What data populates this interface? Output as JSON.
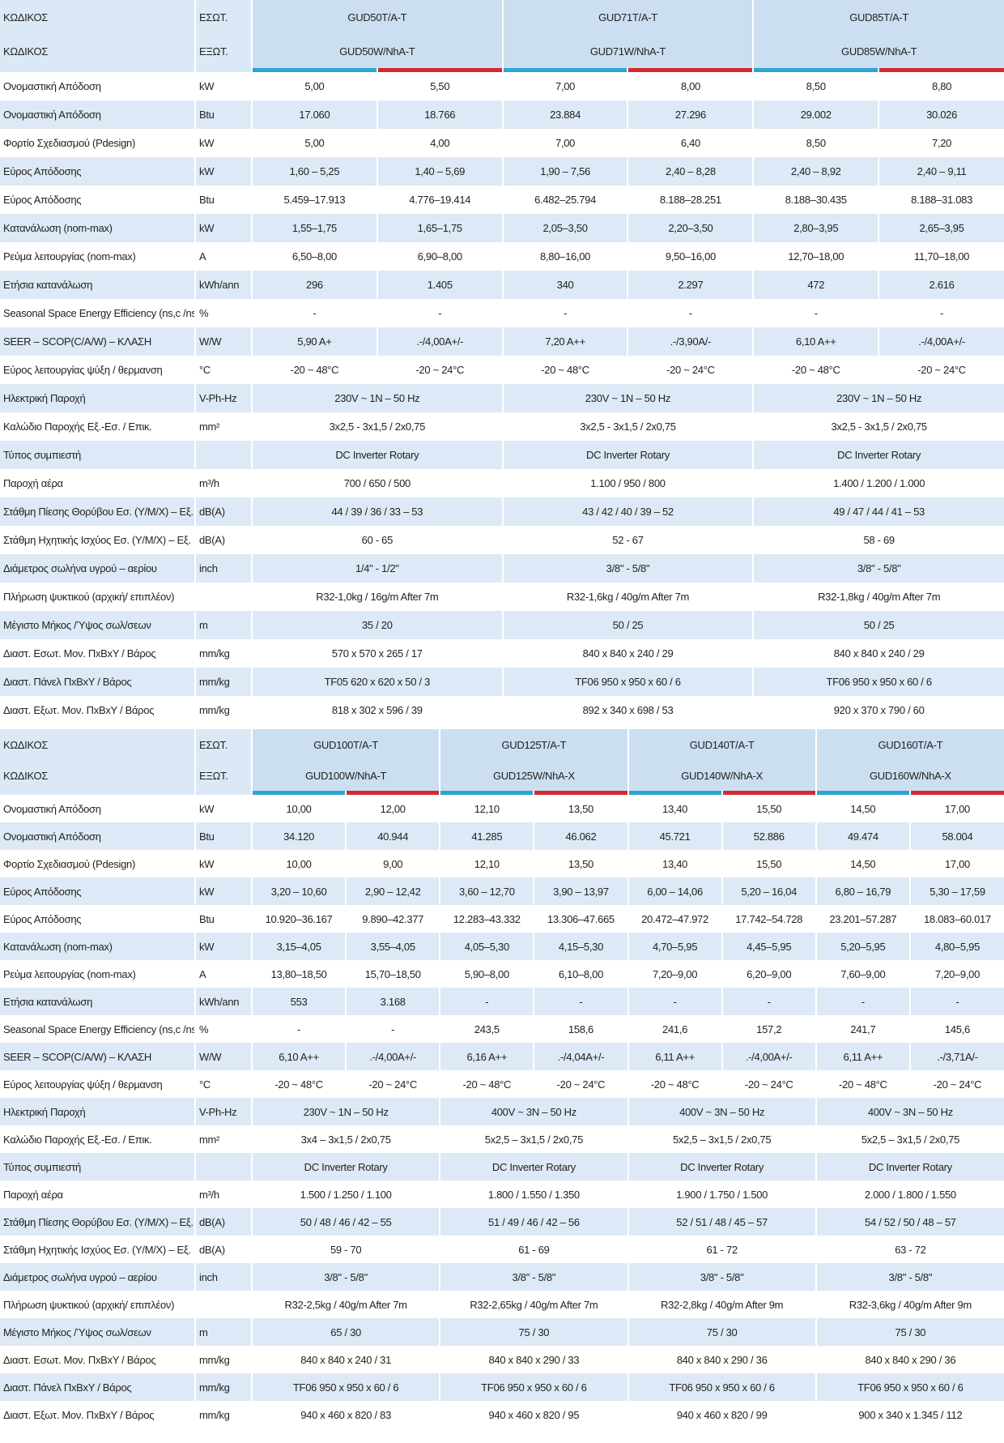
{
  "tables": [
    {
      "header": {
        "label": [
          "ΚΩΔΙΚΟΣ",
          "ΚΩΔΙΚΟΣ"
        ],
        "unit": [
          "ΕΣΩΤ.",
          "ΕΞΩΤ."
        ],
        "models": [
          {
            "indoor": "GUD50T/A-T",
            "outdoor": "GUD50W/NhA-T"
          },
          {
            "indoor": "GUD71T/A-T",
            "outdoor": "GUD71W/NhA-T"
          },
          {
            "indoor": "GUD85T/A-T",
            "outdoor": "GUD85W/NhA-T"
          }
        ]
      },
      "rows": [
        {
          "label": "Ονομαστική Απόδοση",
          "unit": "kW",
          "cells": [
            "5,00",
            "5,50",
            "7,00",
            "8,00",
            "8,50",
            "8,80"
          ]
        },
        {
          "label": "Ονομαστική Απόδοση",
          "unit": "Btu",
          "cells": [
            "17.060",
            "18.766",
            "23.884",
            "27.296",
            "29.002",
            "30.026"
          ]
        },
        {
          "label": "Φορτίο Σχεδιασμού (Pdesign)",
          "unit": "kW",
          "cells": [
            "5,00",
            "4,00",
            "7,00",
            "6,40",
            "8,50",
            "7,20"
          ]
        },
        {
          "label": "Εύρος Απόδοσης",
          "unit": "kW",
          "cells": [
            "1,60 – 5,25",
            "1,40 – 5,69",
            "1,90 – 7,56",
            "2,40 – 8,28",
            "2,40 – 8,92",
            "2,40 – 9,11"
          ]
        },
        {
          "label": "Εύρος Απόδοσης",
          "unit": "Btu",
          "cells": [
            "5.459–17.913",
            "4.776–19.414",
            "6.482–25.794",
            "8.188–28.251",
            "8.188–30.435",
            "8.188–31.083"
          ]
        },
        {
          "label": "Κατανάλωση (nom-max)",
          "unit": "kW",
          "cells": [
            "1,55–1,75",
            "1,65–1,75",
            "2,05–3,50",
            "2,20–3,50",
            "2,80–3,95",
            "2,65–3,95"
          ]
        },
        {
          "label": "Ρεύμα λειτουργίας (nom-max)",
          "unit": "A",
          "cells": [
            "6,50–8,00",
            "6,90–8,00",
            "8,80–16,00",
            "9,50–16,00",
            "12,70–18,00",
            "11,70–18,00"
          ]
        },
        {
          "label": "Ετήσια κατανάλωση",
          "unit": "kWh/ann",
          "cells": [
            "296",
            "1.405",
            "340",
            "2.297",
            "472",
            "2.616"
          ]
        },
        {
          "label": "Seasonal Space Energy Efficiency (ns,c /ns,h)",
          "unit": "%",
          "cells": [
            "-",
            "-",
            "-",
            "-",
            "-",
            "-"
          ]
        },
        {
          "label": "SEER – SCOP(C/A/W) – ΚΛΑΣΗ",
          "unit": "W/W",
          "cells": [
            "5,90 A+",
            ".-/4,00A+/-",
            "7,20 A++",
            ".-/3,90A/-",
            "6,10 A++",
            ".-/4,00A+/-"
          ]
        },
        {
          "label": "Εύρος λειτουργίας ψύξη / θερμανση",
          "unit": "°C",
          "cells": [
            "-20 ~ 48°C",
            "-20 ~ 24°C",
            "-20 ~ 48°C",
            "-20 ~ 24°C",
            "-20 ~ 48°C",
            "-20 ~ 24°C"
          ]
        },
        {
          "label": "Ηλεκτρική Παροχή",
          "unit": "V-Ph-Hz",
          "cells": [
            "230V ~ 1N – 50 Hz",
            "230V ~ 1N – 50 Hz",
            "230V ~ 1N – 50 Hz"
          ]
        },
        {
          "label": "Καλώδιο Παροχής Εξ.-Εσ. / Επικ.",
          "unit": "mm²",
          "cells": [
            "3x2,5 - 3x1,5 / 2x0,75",
            "3x2,5 - 3x1,5 / 2x0,75",
            "3x2,5 - 3x1,5 / 2x0,75"
          ]
        },
        {
          "label": "Τύπος συμπιεστή",
          "cells": [
            "DC Inverter Rotary",
            "DC Inverter Rotary",
            "DC Inverter Rotary"
          ]
        },
        {
          "label": "Παροχή αέρα",
          "unit": "m³/h",
          "cells": [
            "700 / 650 / 500",
            "1.100 / 950 / 800",
            "1.400 / 1.200 / 1.000"
          ]
        },
        {
          "label": "Στάθμη Πίεσης Θορύβου Εσ. (Υ/Μ/Χ) – Εξ.",
          "unit": "dB(A)",
          "cells": [
            "44 / 39 / 36 / 33 – 53",
            "43 / 42 / 40 / 39 – 52",
            "49 / 47 / 44 / 41 – 53"
          ]
        },
        {
          "label": "Στάθμη Ηχητικής Ισχύος Εσ. (Υ/Μ/Χ) – Εξ.",
          "unit": "dB(A)",
          "cells": [
            "60 - 65",
            "52 - 67",
            "58 - 69"
          ]
        },
        {
          "label": "Διάμετρος σωλήνα υγρού – αερίου",
          "unit": "inch",
          "cells": [
            "1/4\" - 1/2\"",
            "3/8\" - 5/8\"",
            "3/8\" - 5/8\""
          ]
        },
        {
          "label": "Πλήρωση ψυκτικού (αρχική/ επιπλέον)",
          "cells": [
            "R32-1,0kg / 16g/m After 7m",
            "R32-1,6kg / 40g/m After 7m",
            "R32-1,8kg / 40g/m After 7m"
          ]
        },
        {
          "label": "Μέγιστο Μήκος /Ύψος σωλ/σεων",
          "unit": "m",
          "cells": [
            "35 / 20",
            "50 / 25",
            "50 / 25"
          ]
        },
        {
          "label": "Διαστ. Εσωτ. Μον. ΠxΒxΥ / Βάρος",
          "unit": "mm/kg",
          "cells": [
            "570 x 570 x 265 / 17",
            "840 x 840 x 240 / 29",
            "840 x 840 x 240 / 29"
          ]
        },
        {
          "label": "Διαστ. Πάνελ ΠxΒxΥ / Βάρος",
          "unit": "mm/kg",
          "cells": [
            "TF05 620 x 620 x 50 / 3",
            "TF06 950 x 950 x 60 / 6",
            "TF06 950 x 950 x 60 / 6"
          ]
        },
        {
          "label": "Διαστ. Εξωτ. Μον. ΠxΒxΥ / Βάρος",
          "unit": "mm/kg",
          "cells": [
            "818 x 302 x 596 / 39",
            "892 x 340 x 698 / 53",
            "920 x 370 x 790 / 60"
          ]
        }
      ]
    },
    {
      "header": {
        "label": [
          "ΚΩΔΙΚΟΣ",
          "ΚΩΔΙΚΟΣ"
        ],
        "unit": [
          "ΕΣΩΤ.",
          "ΕΞΩΤ."
        ],
        "models": [
          {
            "indoor": "GUD100T/A-T",
            "outdoor": "GUD100W/NhA-T"
          },
          {
            "indoor": "GUD125T/A-T",
            "outdoor": "GUD125W/NhA-X"
          },
          {
            "indoor": "GUD140T/A-T",
            "outdoor": "GUD140W/NhA-X"
          },
          {
            "indoor": "GUD160T/A-T",
            "outdoor": "GUD160W/NhA-X"
          }
        ]
      },
      "rows": [
        {
          "label": "Ονομαστική Απόδοση",
          "unit": "kW",
          "cells": [
            "10,00",
            "12,00",
            "12,10",
            "13,50",
            "13,40",
            "15,50",
            "14,50",
            "17,00"
          ]
        },
        {
          "label": "Ονομαστική Απόδοση",
          "unit": "Btu",
          "cells": [
            "34.120",
            "40.944",
            "41.285",
            "46.062",
            "45.721",
            "52.886",
            "49.474",
            "58.004"
          ]
        },
        {
          "label": "Φορτίο Σχεδιασμού (Pdesign)",
          "unit": "kW",
          "cells": [
            "10,00",
            "9,00",
            "12,10",
            "13,50",
            "13,40",
            "15,50",
            "14,50",
            "17,00"
          ]
        },
        {
          "label": "Εύρος Απόδοσης",
          "unit": "kW",
          "cells": [
            "3,20 – 10,60",
            "2,90 – 12,42",
            "3,60 – 12,70",
            "3,90 – 13,97",
            "6,00 – 14,06",
            "5,20 – 16,04",
            "6,80 – 16,79",
            "5,30 – 17,59"
          ]
        },
        {
          "label": "Εύρος Απόδοσης",
          "unit": "Btu",
          "cells": [
            "10.920–36.167",
            "9.890–42.377",
            "12.283–43.332",
            "13.306–47.665",
            "20.472–47.972",
            "17.742–54.728",
            "23.201–57.287",
            "18.083–60.017"
          ]
        },
        {
          "label": "Κατανάλωση (nom-max)",
          "unit": "kW",
          "cells": [
            "3,15–4,05",
            "3,55–4,05",
            "4,05–5,30",
            "4,15–5,30",
            "4,70–5,95",
            "4,45–5,95",
            "5,20–5,95",
            "4,80–5,95"
          ]
        },
        {
          "label": "Ρεύμα λειτουργίας (nom-max)",
          "unit": "A",
          "cells": [
            "13,80–18,50",
            "15,70–18,50",
            "5,90–8,00",
            "6,10–8,00",
            "7,20–9,00",
            "6,20–9,00",
            "7,60–9,00",
            "7,20–9,00"
          ]
        },
        {
          "label": "Ετήσια κατανάλωση",
          "unit": "kWh/ann",
          "cells": [
            "553",
            "3.168",
            "-",
            "-",
            "-",
            "-",
            "-",
            "-"
          ]
        },
        {
          "label": "Seasonal Space Energy Efficiency (ns,c /ns,h)",
          "unit": "%",
          "cells": [
            "-",
            "-",
            "243,5",
            "158,6",
            "241,6",
            "157,2",
            "241,7",
            "145,6"
          ]
        },
        {
          "label": "SEER – SCOP(C/A/W) – ΚΛΑΣΗ",
          "unit": "W/W",
          "cells": [
            "6,10 A++",
            ".-/4,00A+/-",
            "6,16 A++",
            ".-/4,04A+/-",
            "6,11 A++",
            ".-/4,00A+/-",
            "6,11 A++",
            ".-/3,71A/-"
          ]
        },
        {
          "label": "Εύρος λειτουργίας ψύξη / θερμανση",
          "unit": "°C",
          "cells": [
            "-20 ~ 48°C",
            "-20 ~ 24°C",
            "-20 ~ 48°C",
            "-20 ~ 24°C",
            "-20 ~ 48°C",
            "-20 ~ 24°C",
            "-20 ~ 48°C",
            "-20 ~ 24°C"
          ]
        },
        {
          "label": "Ηλεκτρική Παροχή",
          "unit": "V-Ph-Hz",
          "cells": [
            "230V ~ 1N – 50 Hz",
            "400V ~ 3N – 50 Hz",
            "400V ~ 3N – 50 Hz",
            "400V ~ 3N – 50 Hz"
          ]
        },
        {
          "label": "Καλώδιο Παροχής Εξ.-Εσ. / Επικ.",
          "unit": "mm²",
          "cells": [
            "3x4 – 3x1,5 / 2x0,75",
            "5x2,5 – 3x1,5 / 2x0,75",
            "5x2,5 – 3x1,5 / 2x0,75",
            "5x2,5 – 3x1,5 / 2x0,75"
          ]
        },
        {
          "label": "Τύπος συμπιεστή",
          "cells": [
            "DC Inverter Rotary",
            "DC Inverter Rotary",
            "DC Inverter Rotary",
            "DC Inverter Rotary"
          ]
        },
        {
          "label": "Παροχή αέρα",
          "unit": "m³/h",
          "cells": [
            "1.500 / 1.250 / 1.100",
            "1.800 / 1.550 / 1.350",
            "1.900 / 1.750 / 1.500",
            "2.000 / 1.800 / 1.550"
          ]
        },
        {
          "label": "Στάθμη Πίεσης Θορύβου Εσ. (Υ/Μ/Χ) – Εξ.",
          "unit": "dB(A)",
          "cells": [
            "50 / 48 / 46 / 42 – 55",
            "51 / 49 / 46 / 42 – 56",
            "52 / 51 / 48 / 45 – 57",
            "54 / 52 / 50 / 48 – 57"
          ]
        },
        {
          "label": "Στάθμη Ηχητικής Ισχύος Εσ. (Υ/Μ/Χ) – Εξ.",
          "unit": "dB(A)",
          "cells": [
            "59 - 70",
            "61 - 69",
            "61 - 72",
            "63 - 72"
          ]
        },
        {
          "label": "Διάμετρος σωλήνα υγρού – αερίου",
          "unit": "inch",
          "cells": [
            "3/8\" - 5/8\"",
            "3/8\" - 5/8\"",
            "3/8\" - 5/8\"",
            "3/8\" - 5/8\""
          ]
        },
        {
          "label": "Πλήρωση ψυκτικού (αρχική/ επιπλέον)",
          "cells": [
            "R32-2,5kg / 40g/m After 7m",
            "R32-2,65kg / 40g/m After 7m",
            "R32-2,8kg / 40g/m After 9m",
            "R32-3,6kg / 40g/m After 9m"
          ]
        },
        {
          "label": "Μέγιστο Μήκος /Ύψος σωλ/σεων",
          "unit": "m",
          "cells": [
            "65 / 30",
            "75 / 30",
            "75 / 30",
            "75 / 30"
          ]
        },
        {
          "label": "Διαστ. Εσωτ. Μον. ΠxΒxΥ / Βάρος",
          "unit": "mm/kg",
          "cells": [
            "840 x 840 x 240 / 31",
            "840 x 840 x 290 / 33",
            "840 x 840 x 290 / 36",
            "840 x 840 x 290 / 36"
          ]
        },
        {
          "label": "Διαστ. Πάνελ ΠxΒxΥ / Βάρος",
          "unit": "mm/kg",
          "cells": [
            "TF06 950 x 950 x 60 / 6",
            "TF06 950 x 950 x 60 / 6",
            "TF06 950 x 950 x 60 / 6",
            "TF06 950 x 950 x 60 / 6"
          ]
        },
        {
          "label": "Διαστ. Εξωτ. Μον. ΠxΒxΥ / Βάρος",
          "unit": "mm/kg",
          "cells": [
            "940 x 460 x 820 / 83",
            "940 x 460 x 820 / 95",
            "940 x 460 x 820 / 99",
            "900 x 340 x 1.345 / 112"
          ]
        }
      ]
    }
  ]
}
